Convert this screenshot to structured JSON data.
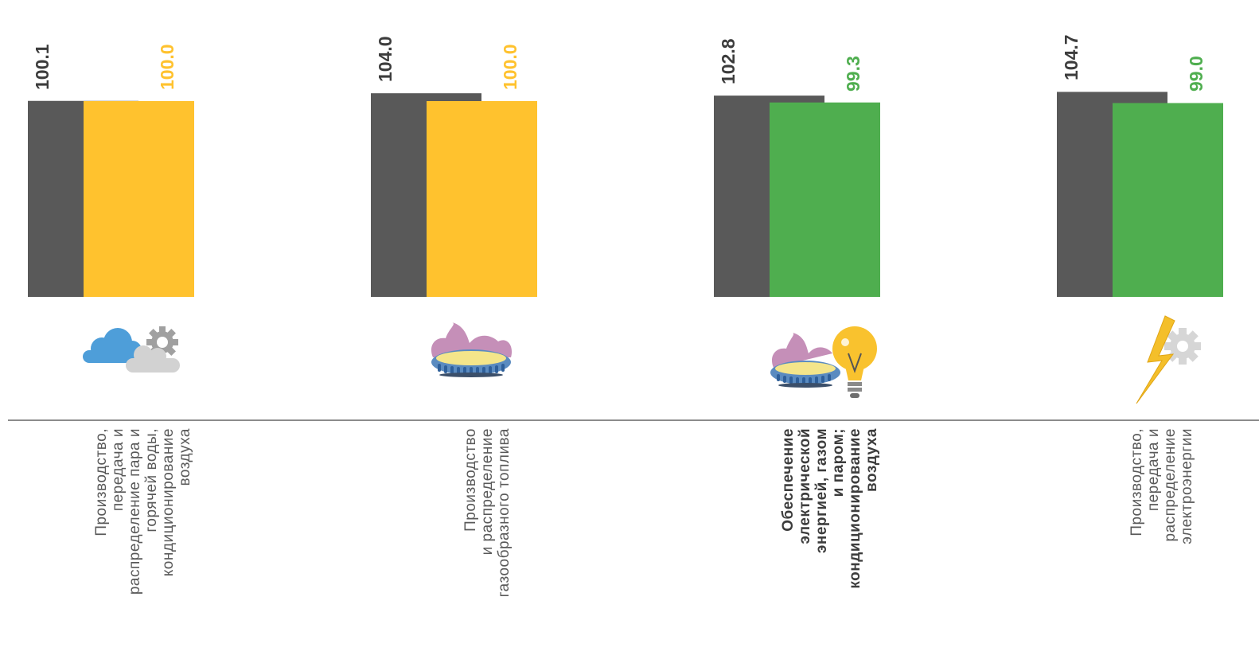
{
  "chart_data": {
    "type": "bar",
    "ylim": [
      0,
      106
    ],
    "categories": [
      "Производство, передача и распределение пара и горячей воды, кондиционирование воздуха",
      "Производство и распределение газообразного топлива",
      "Обеспечение электрической энергией, газом и паром; кондиционирование воздуха",
      "Производство, передача и распределение электроэнергии"
    ],
    "category_lines": [
      [
        "Производство,",
        "передача и",
        "распределение пара и",
        "горячей воды,",
        "кондиционирование",
        "воздуха"
      ],
      [
        "Производство",
        "и распределение",
        "газообразного топлива"
      ],
      [
        "Обеспечение",
        "электрической",
        "энергией, газом",
        "и паром;",
        "кондиционирование",
        "воздуха"
      ],
      [
        "Производство,",
        "передача и",
        "распределение",
        "электроэнергии"
      ]
    ],
    "category_bold": [
      false,
      false,
      true,
      false
    ],
    "series": [
      {
        "values": [
          100.1,
          104.0,
          102.8,
          104.7
        ],
        "color": "#595959"
      },
      {
        "values": [
          100.0,
          100.0,
          99.3,
          99.0
        ],
        "colors": [
          "#FFC22E",
          "#FFC22E",
          "#4FAE4F",
          "#4FAE4F"
        ]
      }
    ],
    "labels": [
      [
        "100.1",
        "104.0",
        "102.8",
        "104.7"
      ],
      [
        "100.0",
        "100.0",
        "99.3",
        "99.0"
      ]
    ],
    "icons": [
      "cloud-gear-icon",
      "gas-burner-icon",
      "burner-bulb-icon",
      "lightning-gear-icon"
    ],
    "colors": {
      "dark": "#595959",
      "yellow": "#FFC22E",
      "green": "#4FAE4F",
      "axis": "#8c8c8c"
    }
  }
}
